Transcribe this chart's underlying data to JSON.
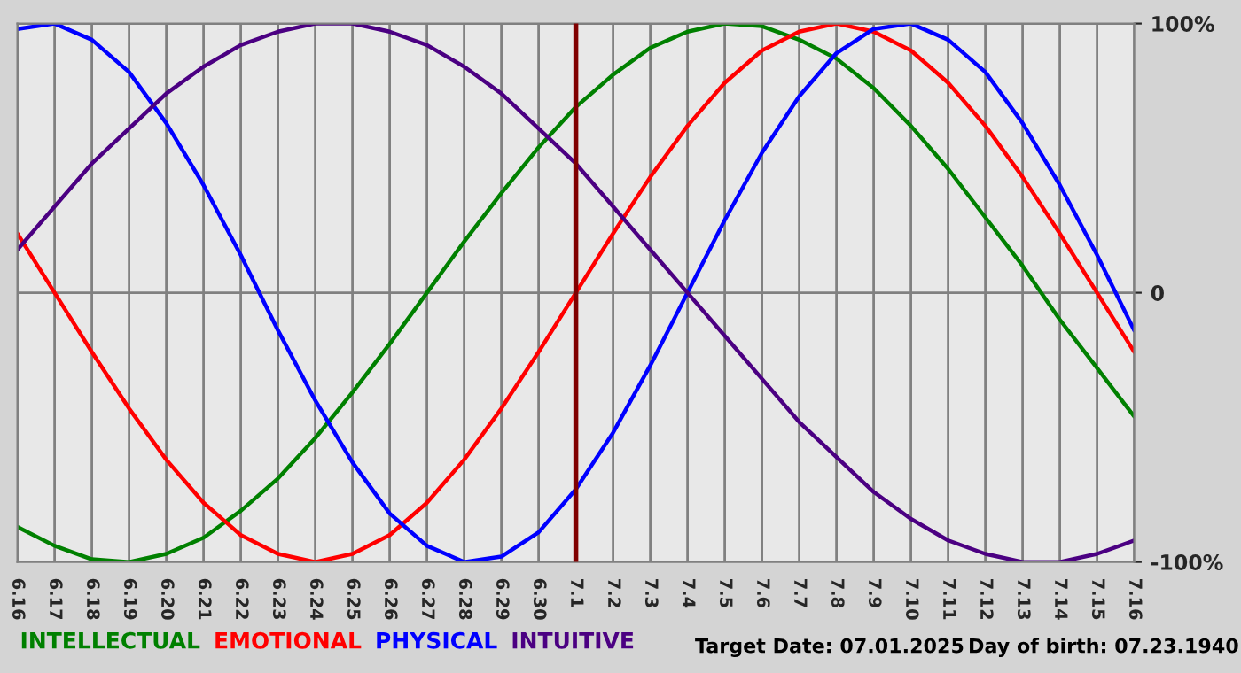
{
  "chart_data": {
    "type": "line",
    "categories": [
      "6.16",
      "6.17",
      "6.18",
      "6.19",
      "6.20",
      "6.21",
      "6.22",
      "6.23",
      "6.24",
      "6.25",
      "6.26",
      "6.27",
      "6.28",
      "6.29",
      "6.30",
      "7.1",
      "7.2",
      "7.3",
      "7.4",
      "7.5",
      "7.6",
      "7.7",
      "7.8",
      "7.9",
      "7.10",
      "7.11",
      "7.12",
      "7.13",
      "7.14",
      "7.15",
      "7.16"
    ],
    "series": [
      {
        "name": "INTELLECTUAL",
        "color": "#008000",
        "values": [
          -87,
          -94,
          -99,
          -100,
          -97,
          -91,
          -81,
          -69,
          -54,
          -37,
          -19,
          0,
          19,
          37,
          54,
          69,
          81,
          91,
          97,
          100,
          99,
          94,
          87,
          76,
          62,
          46,
          28,
          10,
          -10,
          -28,
          -46
        ]
      },
      {
        "name": "EMOTIONAL",
        "color": "#ff0000",
        "values": [
          22,
          0,
          -22,
          -43,
          -62,
          -78,
          -90,
          -97,
          -100,
          -97,
          -90,
          -78,
          -62,
          -43,
          -22,
          0,
          22,
          43,
          62,
          78,
          90,
          97,
          100,
          97,
          90,
          78,
          62,
          43,
          22,
          0,
          -22
        ]
      },
      {
        "name": "PHYSICAL",
        "color": "#0000ff",
        "values": [
          98,
          100,
          94,
          82,
          63,
          40,
          14,
          -14,
          -40,
          -63,
          -82,
          -94,
          -100,
          -98,
          -89,
          -73,
          -52,
          -27,
          0,
          27,
          52,
          73,
          89,
          98,
          100,
          94,
          82,
          63,
          40,
          14,
          -14
        ]
      },
      {
        "name": "INTUITIVE",
        "color": "#4b0082",
        "values": [
          16,
          32,
          48,
          61,
          74,
          84,
          92,
          97,
          100,
          100,
          97,
          92,
          84,
          74,
          61,
          48,
          32,
          16,
          0,
          -16,
          -32,
          -48,
          -61,
          -74,
          -84,
          -92,
          -97,
          -100,
          -100,
          -97,
          -92
        ]
      }
    ],
    "ylim": [
      -100,
      100
    ],
    "yticks": [
      {
        "value": -100,
        "label": "-100%"
      },
      0,
      {
        "value": 100,
        "label": "100%"
      }
    ],
    "grid": true,
    "legend": "bottom left",
    "ref_lines": [
      {
        "axis": "x",
        "value": "7.1",
        "color": "#800000"
      }
    ],
    "annotations": [
      "Target Date: 07.01.2025",
      "Day of birth: 07.23.1940"
    ]
  }
}
